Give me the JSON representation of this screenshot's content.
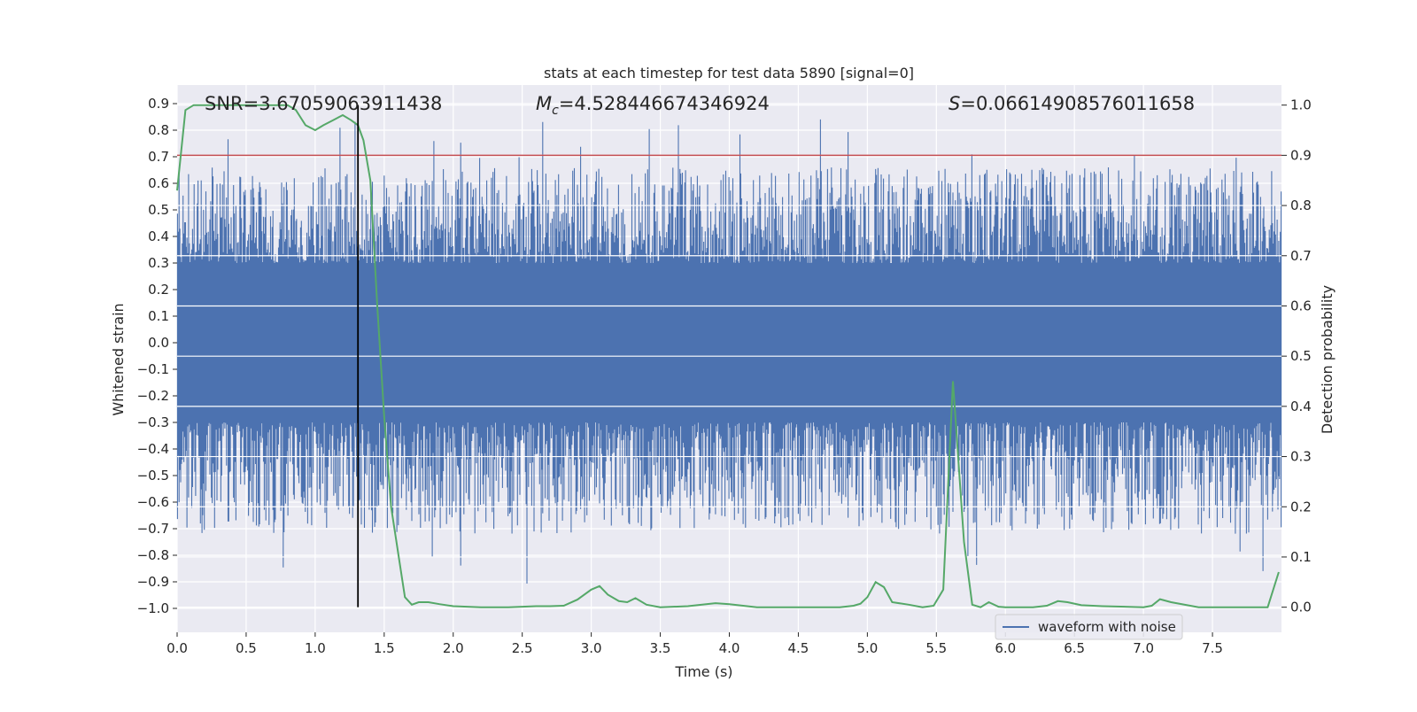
{
  "chart_data": {
    "type": "line",
    "title": "stats at each timestep for test data 5890 [signal=0]",
    "xlabel": "Time (s)",
    "ylabel": "Whitened strain",
    "y2label": "Detection probability",
    "xlim": [
      0.0,
      8.0
    ],
    "ylim": [
      -1.09,
      0.97
    ],
    "y2lim": [
      -0.05,
      1.04
    ],
    "x_ticks": [
      "0.0",
      "0.5",
      "1.0",
      "1.5",
      "2.0",
      "2.5",
      "3.0",
      "3.5",
      "4.0",
      "4.5",
      "5.0",
      "5.5",
      "6.0",
      "6.5",
      "7.0",
      "7.5"
    ],
    "y_ticks": [
      "0.9",
      "0.8",
      "0.7",
      "0.6",
      "0.5",
      "0.4",
      "0.3",
      "0.2",
      "0.1",
      "0.0",
      "−0.1",
      "−0.2",
      "−0.3",
      "−0.4",
      "−0.5",
      "−0.6",
      "−0.7",
      "−0.8",
      "−0.9",
      "−1.0"
    ],
    "y2_ticks": [
      "1.0",
      "0.9",
      "0.8",
      "0.7",
      "0.6",
      "0.5",
      "0.4",
      "0.3",
      "0.2",
      "0.1",
      "0.0"
    ],
    "annotations": {
      "snr": "SNR=3.67059063911438",
      "mc_symbol": "M",
      "mc_sub": "c",
      "mc_value": "=4.528446674346924",
      "s_symbol": "S",
      "s_value": "=0.06614908576011658"
    },
    "legend": {
      "position": "lower-right",
      "entries": [
        "waveform with noise"
      ]
    },
    "grid": true,
    "threshold": 0.9,
    "marker_time": 1.31,
    "series": [
      {
        "name": "waveform with noise",
        "kind": "noise",
        "axis": "left",
        "color": "#4c72b0",
        "core_amplitude": 0.3,
        "max": 0.87,
        "min": -1.0
      },
      {
        "kind": "line",
        "axis": "right",
        "color": "#55a868",
        "x": [
          0.0,
          0.06,
          0.12,
          0.2,
          0.3,
          0.4,
          0.5,
          0.6,
          0.7,
          0.8,
          0.86,
          0.93,
          1.0,
          1.06,
          1.13,
          1.2,
          1.26,
          1.31,
          1.35,
          1.4,
          1.45,
          1.5,
          1.55,
          1.6,
          1.65,
          1.7,
          1.75,
          1.82,
          1.9,
          2.0,
          2.2,
          2.4,
          2.6,
          2.7,
          2.8,
          2.9,
          3.0,
          3.06,
          3.12,
          3.2,
          3.26,
          3.32,
          3.4,
          3.5,
          3.7,
          3.9,
          4.0,
          4.2,
          4.5,
          4.8,
          4.9,
          4.95,
          5.0,
          5.06,
          5.12,
          5.18,
          5.3,
          5.4,
          5.48,
          5.55,
          5.62,
          5.7,
          5.76,
          5.82,
          5.88,
          5.95,
          6.0,
          6.2,
          6.3,
          6.38,
          6.45,
          6.55,
          6.7,
          7.0,
          7.06,
          7.12,
          7.2,
          7.4,
          7.6,
          7.9,
          7.98
        ],
        "y": [
          0.83,
          0.99,
          1.0,
          1.0,
          1.0,
          1.0,
          1.0,
          1.0,
          1.0,
          1.0,
          0.99,
          0.96,
          0.95,
          0.96,
          0.97,
          0.98,
          0.97,
          0.96,
          0.93,
          0.85,
          0.6,
          0.38,
          0.2,
          0.11,
          0.02,
          0.005,
          0.01,
          0.01,
          0.006,
          0.002,
          0.0,
          0.0,
          0.002,
          0.002,
          0.003,
          0.015,
          0.035,
          0.042,
          0.025,
          0.012,
          0.01,
          0.018,
          0.005,
          0.0,
          0.002,
          0.008,
          0.006,
          0.0,
          0.0,
          0.0,
          0.003,
          0.007,
          0.02,
          0.05,
          0.04,
          0.01,
          0.005,
          0.0,
          0.003,
          0.035,
          0.45,
          0.13,
          0.005,
          0.0,
          0.01,
          0.001,
          0.0,
          0.0,
          0.003,
          0.012,
          0.01,
          0.004,
          0.002,
          0.0,
          0.003,
          0.016,
          0.01,
          0.0,
          0.0,
          0.0,
          0.07
        ]
      },
      {
        "kind": "hline",
        "axis": "right",
        "color": "#c44e52",
        "y": 0.9
      }
    ]
  }
}
